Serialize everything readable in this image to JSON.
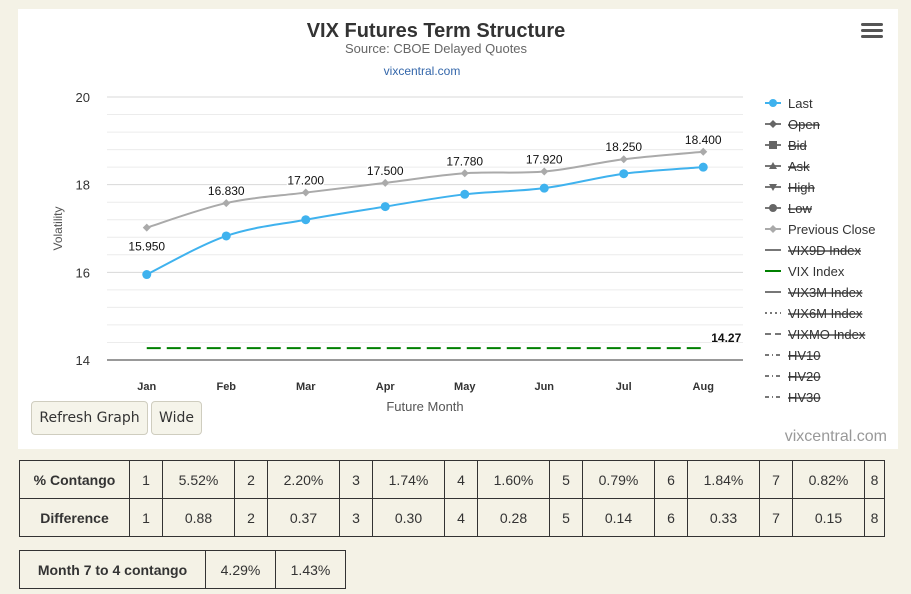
{
  "chart_data": {
    "type": "line",
    "title": "VIX Futures Term Structure",
    "subtitle": "Source: CBOE Delayed Quotes",
    "link": "vixcentral.com",
    "xlabel": "Future Month",
    "ylabel": "Volatility",
    "categories": [
      "Jan",
      "Feb",
      "Mar",
      "Apr",
      "May",
      "Jun",
      "Jul",
      "Aug"
    ],
    "ylim": [
      14,
      20
    ],
    "yticks": [
      14,
      16,
      18,
      20
    ],
    "series": [
      {
        "name": "Last",
        "values": [
          15.95,
          16.83,
          17.2,
          17.5,
          17.78,
          17.92,
          18.25,
          18.4
        ],
        "data_labels": [
          "15.950",
          "16.830",
          "17.200",
          "17.500",
          "17.780",
          "17.920",
          "18.250",
          "18.400"
        ],
        "color": "#3fb2ee"
      },
      {
        "name": "Previous Close",
        "values": [
          17.02,
          17.58,
          17.82,
          18.04,
          18.26,
          18.3,
          18.58,
          18.75
        ],
        "color": "#aaaaaa"
      },
      {
        "name": "VIX Index",
        "values": [
          14.27,
          14.27,
          14.27,
          14.27,
          14.27,
          14.27,
          14.27,
          14.27
        ],
        "end_label": "14.27",
        "color": "#008000",
        "dashed": true
      }
    ],
    "legend": {
      "placement": "right",
      "items": [
        {
          "label": "Last",
          "active": true,
          "marker": "circle",
          "color": "#3fb2ee"
        },
        {
          "label": "Open",
          "active": false,
          "marker": "diamond",
          "color": "#555555"
        },
        {
          "label": "Bid",
          "active": false,
          "marker": "square",
          "color": "#555555"
        },
        {
          "label": "Ask",
          "active": false,
          "marker": "triangle",
          "color": "#555555"
        },
        {
          "label": "High",
          "active": false,
          "marker": "triangle-down",
          "color": "#555555"
        },
        {
          "label": "Low",
          "active": false,
          "marker": "circle",
          "color": "#555555"
        },
        {
          "label": "Previous Close",
          "active": true,
          "marker": "diamond",
          "color": "#aaaaaa"
        },
        {
          "label": "VIX9D Index",
          "active": false,
          "marker": "line",
          "color": "#555555"
        },
        {
          "label": "VIX Index",
          "active": true,
          "marker": "line",
          "color": "#008000"
        },
        {
          "label": "VIX3M Index",
          "active": false,
          "marker": "line",
          "color": "#555555"
        },
        {
          "label": "VIX6M Index",
          "active": false,
          "marker": "dotted",
          "color": "#555555"
        },
        {
          "label": "VIXMO Index",
          "active": false,
          "marker": "dashed",
          "color": "#555555"
        },
        {
          "label": "HV10",
          "active": false,
          "marker": "dashdot",
          "color": "#555555"
        },
        {
          "label": "HV20",
          "active": false,
          "marker": "dashdot",
          "color": "#555555"
        },
        {
          "label": "HV30",
          "active": false,
          "marker": "dashdot",
          "color": "#555555"
        }
      ]
    },
    "grid": true
  },
  "controls": {
    "refresh_label": "Refresh Graph",
    "wide_label": "Wide",
    "credit": "vixcentral.com"
  },
  "contango_table": {
    "rows": [
      {
        "label": "% Contango",
        "cells": [
          "1",
          "5.52%",
          "2",
          "2.20%",
          "3",
          "1.74%",
          "4",
          "1.60%",
          "5",
          "0.79%",
          "6",
          "1.84%",
          "7",
          "0.82%",
          "8"
        ]
      },
      {
        "label": "Difference",
        "cells": [
          "1",
          "0.88",
          "2",
          "0.37",
          "3",
          "0.30",
          "4",
          "0.28",
          "5",
          "0.14",
          "6",
          "0.33",
          "7",
          "0.15",
          "8"
        ]
      }
    ]
  },
  "summary_table": {
    "label": "Month 7 to 4 contango",
    "values": [
      "4.29%",
      "1.43%"
    ]
  }
}
